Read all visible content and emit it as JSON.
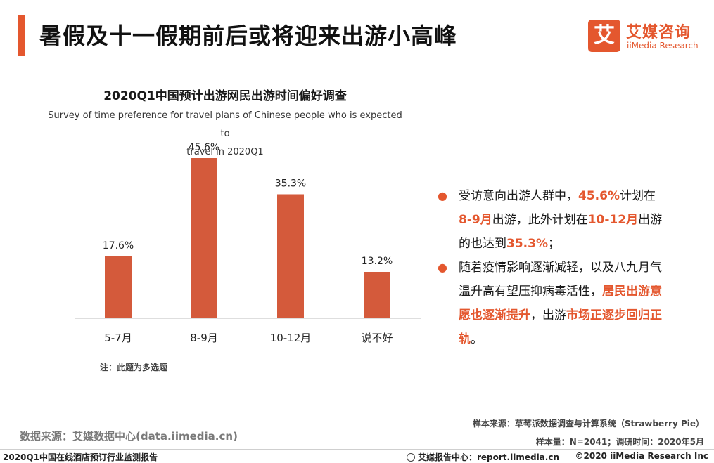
{
  "header": {
    "title": "暑假及十一假期前后或将迎来出游小高峰",
    "logo_mark": "艾",
    "logo_cn": "艾媒咨询",
    "logo_en": "iiMedia Research"
  },
  "chart_data": {
    "type": "bar",
    "title": "2020Q1中国预计出游网民出游时间偏好调查",
    "subtitle_line1": "Survey of time preference for travel plans of Chinese people who is expected to",
    "subtitle_line2": "travel in 2020Q1",
    "categories": [
      "5-7月",
      "8-9月",
      "10-12月",
      "说不好"
    ],
    "values": [
      17.6,
      45.6,
      35.3,
      13.2
    ],
    "data_labels": [
      "17.6%",
      "45.6%",
      "35.3%",
      "13.2%"
    ],
    "ylim": [
      0,
      50
    ],
    "color": "#D45A3B",
    "grid": false
  },
  "note": "注：此题为多选题",
  "bullets": [
    {
      "parts": [
        "受访意向出游人群中，",
        "45.6%",
        "计划在",
        "8-9月",
        "出游，此外计划在",
        "10-12月",
        "出游的也达到",
        "35.3%",
        "；"
      ]
    },
    {
      "parts": [
        "随着疫情影响逐渐减轻，以及八九月气温升高有望压抑病毒活性，",
        "居民出游意愿也逐渐提升",
        "，出游",
        "市场正逐步回归正轨",
        "。"
      ]
    }
  ],
  "sources": {
    "data_source": "数据来源：艾媒数据中心(data.iimedia.cn)",
    "sample_source": "样本来源：草莓派数据调查与计算系统（Strawberry Pie）",
    "sample_size": "样本量：N=2041；调研时间：2020年5月"
  },
  "footer": {
    "left": "2020Q1中国在线酒店预订行业监测报告",
    "mid": "艾媒报告中心：report.iimedia.cn",
    "right": "©2020  iiMedia Research  Inc"
  },
  "colors": {
    "accent": "#E4572E"
  }
}
